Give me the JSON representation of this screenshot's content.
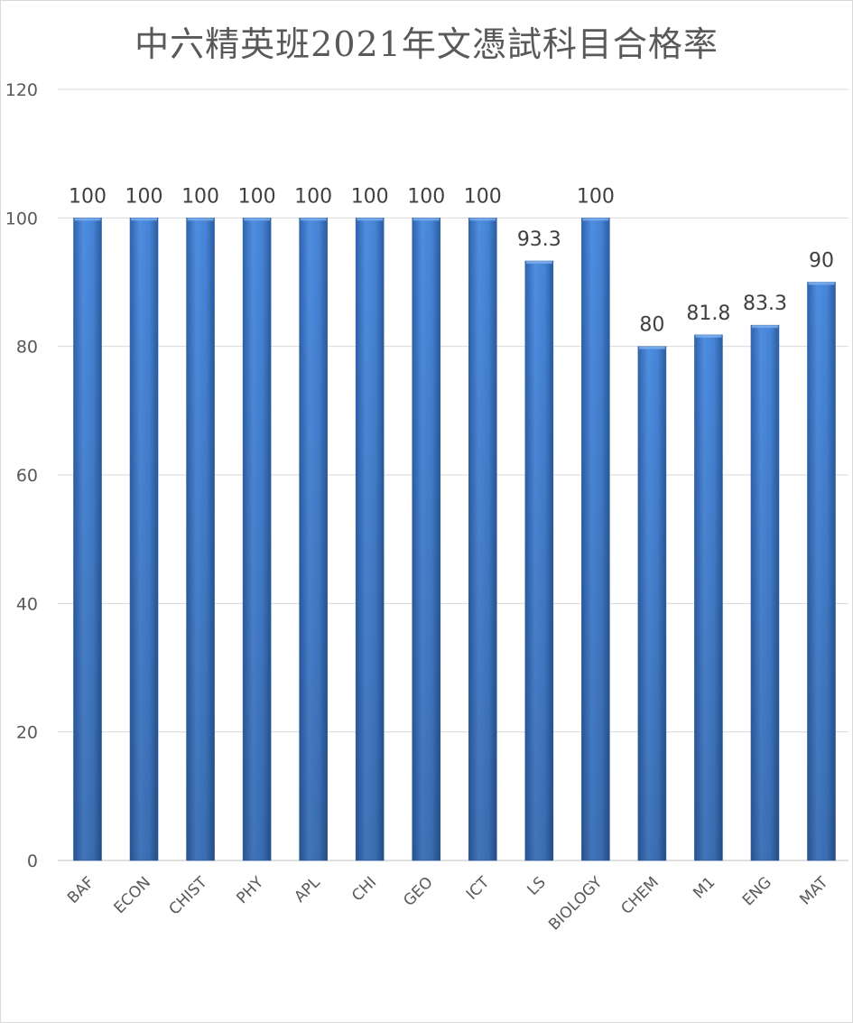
{
  "chart_data": {
    "type": "bar",
    "title": "中六精英班2021年文憑試科目合格率",
    "categories": [
      "BAF",
      "ECON",
      "CHIST",
      "PHY",
      "APL",
      "CHI",
      "GEO",
      "ICT",
      "LS",
      "BIOLOGY",
      "CHEM",
      "M1",
      "ENG",
      "MAT"
    ],
    "values": [
      100,
      100,
      100,
      100,
      100,
      100,
      100,
      100,
      93.3,
      100,
      80,
      81.8,
      83.3,
      90
    ],
    "data_labels": [
      "100",
      "100",
      "100",
      "100",
      "100",
      "100",
      "100",
      "100",
      "93.3",
      "100",
      "80",
      "81.8",
      "83.3",
      "90"
    ],
    "xlabel": "",
    "ylabel": "",
    "ylim": [
      0,
      120
    ],
    "yticks": [
      0,
      20,
      40,
      60,
      80,
      100,
      120
    ],
    "grid": true,
    "legend": "none",
    "bar_color": "#4a86d8",
    "bar_color_dark": "#2f5f9f"
  }
}
